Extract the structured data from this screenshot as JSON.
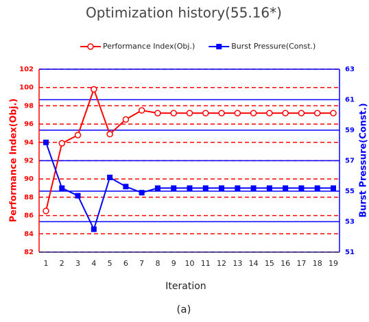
{
  "chart_data": {
    "type": "line",
    "title": "Optimization history(55.16*)",
    "caption": "(a)",
    "xlabel": "Iteration",
    "ylabel": "Performance Index(Obj.)",
    "y2label": "Burst Pressure(Const.)",
    "categories": [
      "1",
      "2",
      "3",
      "4",
      "5",
      "6",
      "7",
      "8",
      "9",
      "10",
      "11",
      "12",
      "13",
      "14",
      "15",
      "16",
      "17",
      "18",
      "19"
    ],
    "series": [
      {
        "name": "Performance Index(Obj.)",
        "color": "#ff0000",
        "marker": "circle",
        "values": [
          86.5,
          93.9,
          94.8,
          99.8,
          94.9,
          96.5,
          97.5,
          97.2,
          97.2,
          97.2,
          97.2,
          97.2,
          97.2,
          97.2,
          97.2,
          97.2,
          97.2,
          97.2,
          97.2
        ]
      },
      {
        "name": "Burst Pressure(Const.)",
        "color": "#0000ff",
        "marker": "square",
        "axis": "y2",
        "values": [
          58.2,
          55.2,
          54.7,
          52.5,
          55.9,
          55.3,
          54.9,
          55.2,
          55.2,
          55.2,
          55.2,
          55.2,
          55.2,
          55.2,
          55.2,
          55.2,
          55.2,
          55.2,
          55.2
        ]
      }
    ],
    "ylim": [
      82,
      102
    ],
    "yticks": [
      82,
      84,
      86,
      88,
      90,
      92,
      94,
      96,
      98,
      100,
      102
    ],
    "y2lim": [
      51,
      63
    ],
    "y2ticks": [
      51,
      53,
      55,
      57,
      59,
      61,
      63
    ],
    "grid": true,
    "legend": "top"
  }
}
